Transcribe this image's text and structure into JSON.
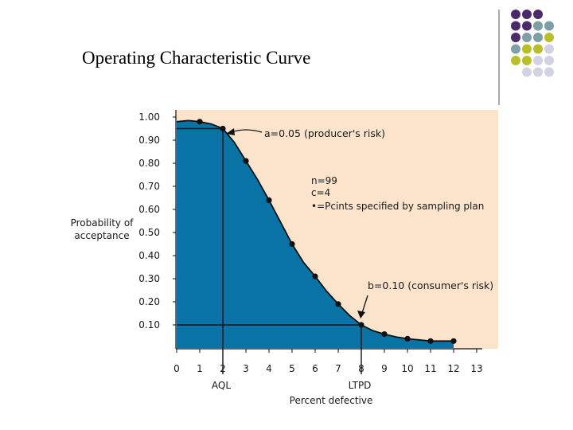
{
  "slide": {
    "title": "Operating Characteristic Curve"
  },
  "decoration": {
    "dot_rows": [
      [
        "purple",
        "purple",
        "purple"
      ],
      [
        "purple",
        "purple",
        "teal",
        "teal"
      ],
      [
        "purple",
        "teal",
        "teal",
        "olive"
      ],
      [
        "teal",
        "olive",
        "olive",
        "lavender"
      ],
      [
        "olive",
        "olive",
        "lavender",
        "lavender"
      ],
      [
        "lavender",
        "lavender",
        "lavender"
      ]
    ],
    "colors": {
      "purple": "#4b2a6b",
      "teal": "#7f9fa6",
      "olive": "#b9bf2a",
      "lavender": "#d2d2e6"
    }
  },
  "chart_data": {
    "type": "area",
    "title": "",
    "xlabel": "Percent defective",
    "ylabel": [
      "Probability of",
      "acceptance"
    ],
    "xlim": [
      0,
      14
    ],
    "ylim": [
      0,
      1.0
    ],
    "x_ticks": [
      0,
      1,
      2,
      3,
      4,
      5,
      6,
      7,
      8,
      9,
      10,
      11,
      12,
      13
    ],
    "y_ticks": [
      "1.00",
      "0.90",
      "0.80",
      "0.70",
      "0.60",
      "0.50",
      "0.40",
      "0.30",
      "0.20",
      "0.10"
    ],
    "y_tick_values": [
      1.0,
      0.9,
      0.8,
      0.7,
      0.6,
      0.5,
      0.4,
      0.3,
      0.2,
      0.1
    ],
    "points": {
      "x": [
        1,
        2,
        3,
        4,
        5,
        6,
        7,
        8,
        9,
        10,
        11,
        12
      ],
      "y": [
        0.98,
        0.95,
        0.81,
        0.64,
        0.45,
        0.31,
        0.19,
        0.1,
        0.06,
        0.04,
        0.03,
        0.03
      ]
    },
    "curve": {
      "x": [
        0,
        0.5,
        1,
        1.5,
        2,
        2.5,
        3,
        3.5,
        4,
        4.5,
        5,
        5.5,
        6,
        6.5,
        7,
        7.5,
        8,
        8.5,
        9,
        9.5,
        10,
        11,
        12
      ],
      "y": [
        0.98,
        0.985,
        0.98,
        0.97,
        0.95,
        0.89,
        0.81,
        0.73,
        0.64,
        0.545,
        0.45,
        0.37,
        0.31,
        0.245,
        0.19,
        0.14,
        0.1,
        0.075,
        0.06,
        0.048,
        0.04,
        0.03,
        0.03
      ]
    },
    "reference_lines": {
      "aql": {
        "x": 2,
        "y": 0.95,
        "label": "AQL"
      },
      "ltpd": {
        "x": 8,
        "y": 0.1,
        "label": "LTPD"
      }
    },
    "annotations": {
      "producers_risk": "a=0.05 (producer's risk)",
      "consumers_risk": "b=0.10 (consumer's risk)",
      "plan_n": "n=99",
      "plan_c": "c=4",
      "plan_points": "•=Pcints specified by sampling plan"
    },
    "colors": {
      "fill": "#0a73a6",
      "background": "#fbe3cc",
      "line": "#111111",
      "point": "#111111"
    }
  }
}
